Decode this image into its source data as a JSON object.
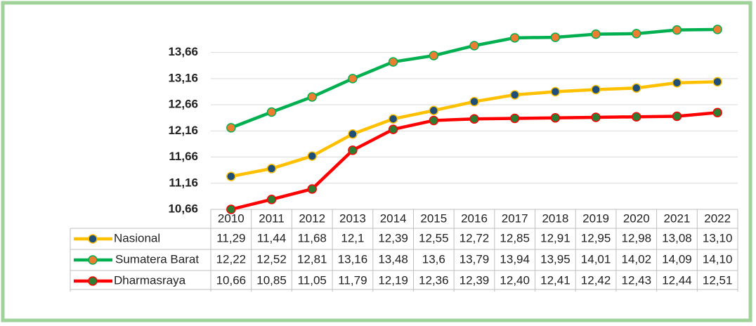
{
  "chart_data": {
    "type": "line",
    "categories": [
      "2010",
      "2011",
      "2012",
      "2013",
      "2014",
      "2015",
      "2016",
      "2017",
      "2018",
      "2019",
      "2020",
      "2021",
      "2022"
    ],
    "series": [
      {
        "name": "Nasional",
        "color": "#ffc000",
        "marker_color": "#1f4e79",
        "values": [
          11.29,
          11.44,
          11.68,
          12.1,
          12.39,
          12.55,
          12.72,
          12.85,
          12.91,
          12.95,
          12.98,
          13.08,
          13.1
        ],
        "value_labels": [
          "11,29",
          "11,44",
          "11,68",
          "12,1",
          "12,39",
          "12,55",
          "12,72",
          "12,85",
          "12,91",
          "12,95",
          "12,98",
          "13,08",
          "13,10"
        ]
      },
      {
        "name": "Sumatera Barat",
        "color": "#00b050",
        "marker_color": "#ed7d31",
        "values": [
          12.22,
          12.52,
          12.81,
          13.16,
          13.48,
          13.6,
          13.79,
          13.94,
          13.95,
          14.01,
          14.02,
          14.09,
          14.1
        ],
        "value_labels": [
          "12,22",
          "12,52",
          "12,81",
          "13,16",
          "13,48",
          "13,6",
          "13,79",
          "13,94",
          "13,95",
          "14,01",
          "14,02",
          "14,09",
          "14,10"
        ]
      },
      {
        "name": "Dharmasraya",
        "color": "#ff0000",
        "marker_color": "#2e7d32",
        "values": [
          10.66,
          10.85,
          11.05,
          11.79,
          12.19,
          12.36,
          12.39,
          12.4,
          12.41,
          12.42,
          12.43,
          12.44,
          12.51
        ],
        "value_labels": [
          "10,66",
          "10,85",
          "11,05",
          "11,79",
          "12,19",
          "12,36",
          "12,39",
          "12,40",
          "12,41",
          "12,42",
          "12,43",
          "12,44",
          "12,51"
        ]
      }
    ],
    "ylim": [
      10.66,
      14.26
    ],
    "yticks": [
      {
        "value": 10.66,
        "label": "10,66"
      },
      {
        "value": 11.16,
        "label": "11,16"
      },
      {
        "value": 11.66,
        "label": "11,66"
      },
      {
        "value": 12.16,
        "label": "12,16"
      },
      {
        "value": 12.66,
        "label": "12,66"
      },
      {
        "value": 13.16,
        "label": "13,16"
      },
      {
        "value": 13.66,
        "label": "13,66"
      }
    ],
    "grid": true,
    "data_table": true
  }
}
